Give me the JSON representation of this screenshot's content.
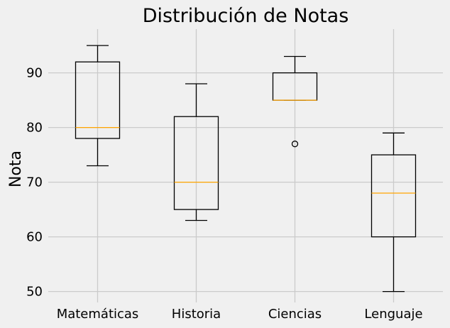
{
  "chart_data": {
    "type": "box",
    "title": "Distribución de Notas",
    "xlabel": "",
    "ylabel": "Nota",
    "ylim": [
      48,
      98
    ],
    "yticks": [
      50,
      60,
      70,
      80,
      90
    ],
    "grid": true,
    "categories": [
      "Matemáticas",
      "Historia",
      "Ciencias",
      "Lenguaje"
    ],
    "boxes": [
      {
        "category": "Matemáticas",
        "whisker_low": 73,
        "q1": 78,
        "median": 80,
        "q3": 92,
        "whisker_high": 95,
        "outliers": []
      },
      {
        "category": "Historia",
        "whisker_low": 63,
        "q1": 65,
        "median": 70,
        "q3": 82,
        "whisker_high": 88,
        "outliers": []
      },
      {
        "category": "Ciencias",
        "whisker_low": 85,
        "q1": 85,
        "median": 85,
        "q3": 90,
        "whisker_high": 93,
        "outliers": [
          77
        ]
      },
      {
        "category": "Lenguaje",
        "whisker_low": 50,
        "q1": 60,
        "median": 68,
        "q3": 75,
        "whisker_high": 79,
        "outliers": []
      }
    ],
    "colors": {
      "background": "#f0f0f0",
      "grid": "#cbcbcb",
      "median": "#ffa500",
      "box": "#000000"
    }
  }
}
